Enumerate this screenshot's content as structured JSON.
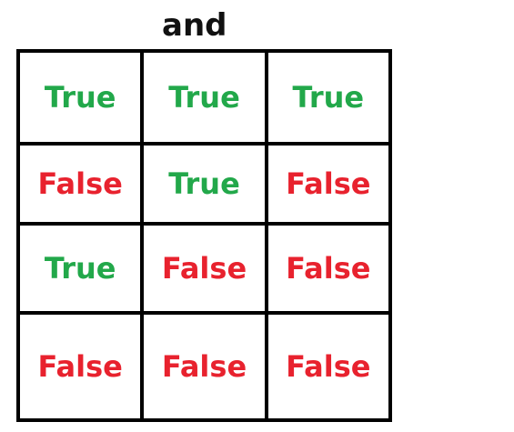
{
  "title": "and",
  "colors": {
    "true": "#22a84a",
    "false": "#e8222e",
    "border": "#000000"
  },
  "rows": [
    [
      "True",
      "True",
      "True"
    ],
    [
      "False",
      "True",
      "False"
    ],
    [
      "True",
      "False",
      "False"
    ],
    [
      "False",
      "False",
      "False"
    ]
  ]
}
